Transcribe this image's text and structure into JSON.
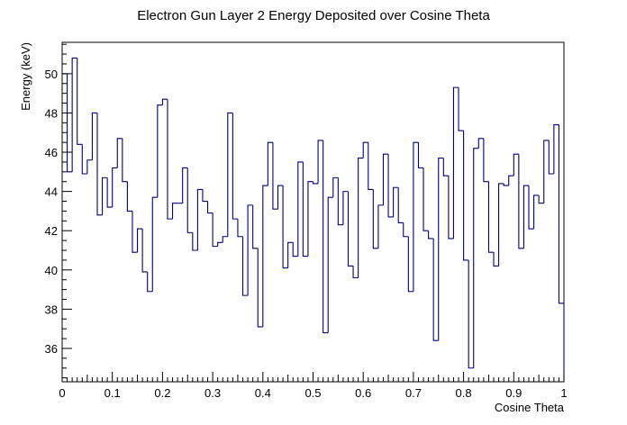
{
  "chart_data": {
    "type": "step",
    "title": "Electron Gun Layer 2 Energy Deposited over Cosine Theta",
    "xlabel": "Cosine Theta",
    "ylabel": "Energy (keV)",
    "xlim": [
      0,
      1
    ],
    "ylim": [
      34.3,
      51.6
    ],
    "x_ticks": [
      "0",
      "0.1",
      "0.2",
      "0.3",
      "0.4",
      "0.5",
      "0.6",
      "0.7",
      "0.8",
      "0.9",
      "1"
    ],
    "y_ticks": [
      "36",
      "38",
      "40",
      "42",
      "44",
      "46",
      "48",
      "50"
    ],
    "bin_width": 0.01,
    "values": [
      50.0,
      45.0,
      50.8,
      46.4,
      44.9,
      45.6,
      48.0,
      42.8,
      44.7,
      43.2,
      45.2,
      46.7,
      44.5,
      43.0,
      40.9,
      42.1,
      39.9,
      38.9,
      43.7,
      48.4,
      48.7,
      42.6,
      43.4,
      43.4,
      45.2,
      41.9,
      41.0,
      44.1,
      43.5,
      42.9,
      41.2,
      41.4,
      41.7,
      48.0,
      42.6,
      41.7,
      38.7,
      43.3,
      41.1,
      37.1,
      44.3,
      46.5,
      43.1,
      44.3,
      40.1,
      41.4,
      40.7,
      45.5,
      40.7,
      44.5,
      44.4,
      46.6,
      36.8,
      43.7,
      44.7,
      42.3,
      44.0,
      40.2,
      39.6,
      45.7,
      46.5,
      44.1,
      41.1,
      43.3,
      45.9,
      42.7,
      44.2,
      42.4,
      41.7,
      38.9,
      46.5,
      45.2,
      42.0,
      41.6,
      36.4,
      45.7,
      44.8,
      41.6,
      49.3,
      47.1,
      40.5,
      35.0,
      46.2,
      46.7,
      44.5,
      40.9,
      40.2,
      44.4,
      44.3,
      44.8,
      45.9,
      41.1,
      44.3,
      42.1,
      43.8,
      43.4,
      46.6,
      44.9,
      47.4,
      38.3
    ],
    "line_color": "#000080",
    "grid": false,
    "legend": false
  }
}
